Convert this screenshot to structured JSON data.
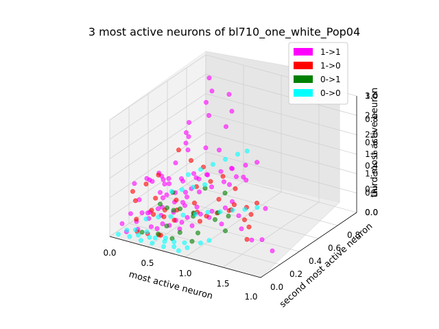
{
  "chart_data": {
    "type": "scatter",
    "projection": "3d",
    "title": "3 most active neurons of bl710_one_white_Pop04",
    "xlabel": "most active neuron",
    "ylabel": "second most active neuron",
    "zlabel": "third most active neuron",
    "xlim": [
      0,
      2
    ],
    "ylim": [
      0,
      1
    ],
    "zlim": [
      0,
      3
    ],
    "x_ticks": [
      "0.0",
      "0.5",
      "1.0",
      "1.5"
    ],
    "y_ticks": [
      "0.0",
      "0.2",
      "0.4",
      "0.6",
      "0.8"
    ],
    "y_ticks_overlay": [
      "0.0",
      "0.2",
      "0.4",
      "0.6",
      "0.8",
      "1.0"
    ],
    "x_ticks_overlay": [
      "0.0",
      "0.2",
      "0.4",
      "0.6",
      "0.8",
      "1.0"
    ],
    "z_ticks": [
      "0.0",
      "0.5",
      "1.0",
      "1.5",
      "2.0",
      "2.5",
      "3.0"
    ],
    "z_ticks_overlay": [
      "0.0",
      "0.2",
      "0.4",
      "0.6",
      "0.8",
      "1.0"
    ],
    "grid": true,
    "legend_placement": "top-right",
    "marker_alpha": 0.6,
    "series": [
      {
        "name": "1->1",
        "color": "#ff00ff",
        "points": [
          [
            0.1,
            0.05,
            0.3
          ],
          [
            0.15,
            0.1,
            0.5
          ],
          [
            0.2,
            0.15,
            0.8
          ],
          [
            0.25,
            0.2,
            0.4
          ],
          [
            0.3,
            0.1,
            0.6
          ],
          [
            0.35,
            0.25,
            0.9
          ],
          [
            0.4,
            0.3,
            1.2
          ],
          [
            0.45,
            0.15,
            0.7
          ],
          [
            0.5,
            0.2,
            1.0
          ],
          [
            0.55,
            0.35,
            0.5
          ],
          [
            0.6,
            0.1,
            1.5
          ],
          [
            0.65,
            0.25,
            0.8
          ],
          [
            0.7,
            0.3,
            1.1
          ],
          [
            0.2,
            0.4,
            0.9
          ],
          [
            0.3,
            0.45,
            1.3
          ],
          [
            0.4,
            0.5,
            1.6
          ],
          [
            0.5,
            0.4,
            2.0
          ],
          [
            0.6,
            0.35,
            2.3
          ],
          [
            0.7,
            0.45,
            1.9
          ],
          [
            0.8,
            0.3,
            1.4
          ],
          [
            0.9,
            0.2,
            0.9
          ],
          [
            1.0,
            0.25,
            0.6
          ],
          [
            1.1,
            0.3,
            0.4
          ],
          [
            0.25,
            0.6,
            1.8
          ],
          [
            0.35,
            0.55,
            2.2
          ],
          [
            0.45,
            0.65,
            2.6
          ],
          [
            0.55,
            0.6,
            2.4
          ],
          [
            0.65,
            0.7,
            2.0
          ],
          [
            0.75,
            0.55,
            1.7
          ],
          [
            0.85,
            0.6,
            1.2
          ],
          [
            0.3,
            0.8,
            2.9
          ],
          [
            0.4,
            0.75,
            2.7
          ],
          [
            0.5,
            0.85,
            2.5
          ],
          [
            0.6,
            0.8,
            2.2
          ],
          [
            0.15,
            0.3,
            0.2
          ],
          [
            0.25,
            0.35,
            0.3
          ],
          [
            0.35,
            0.4,
            0.4
          ],
          [
            0.45,
            0.45,
            0.5
          ],
          [
            0.55,
            0.5,
            0.6
          ],
          [
            0.65,
            0.55,
            0.7
          ],
          [
            0.75,
            0.6,
            0.8
          ],
          [
            0.85,
            0.65,
            0.9
          ],
          [
            0.95,
            0.5,
            1.0
          ],
          [
            1.05,
            0.45,
            0.7
          ],
          [
            1.2,
            0.4,
            0.5
          ],
          [
            1.3,
            0.35,
            0.3
          ],
          [
            1.5,
            0.3,
            0.2
          ],
          [
            1.7,
            0.25,
            0.4
          ],
          [
            1.9,
            0.2,
            0.3
          ],
          [
            1.3,
            0.6,
            0.4
          ],
          [
            0.1,
            0.2,
            0.1
          ],
          [
            0.2,
            0.25,
            0.15
          ],
          [
            0.3,
            0.3,
            0.2
          ],
          [
            0.4,
            0.35,
            0.25
          ],
          [
            0.5,
            0.1,
            0.3
          ],
          [
            0.6,
            0.15,
            0.35
          ],
          [
            0.7,
            0.2,
            0.4
          ],
          [
            0.8,
            0.1,
            0.45
          ],
          [
            0.9,
            0.15,
            0.5
          ],
          [
            0.15,
            0.5,
            0.6
          ],
          [
            0.25,
            0.55,
            0.7
          ],
          [
            0.35,
            0.6,
            0.8
          ],
          [
            0.45,
            0.2,
            0.9
          ],
          [
            0.55,
            0.25,
            1.0
          ],
          [
            0.65,
            0.5,
            1.1
          ],
          [
            0.75,
            0.2,
            1.2
          ],
          [
            0.2,
            0.1,
            1.3
          ],
          [
            0.3,
            0.15,
            1.4
          ],
          [
            0.4,
            0.1,
            1.5
          ],
          [
            0.5,
            0.05,
            1.6
          ],
          [
            0.12,
            0.08,
            0.05
          ],
          [
            0.22,
            0.12,
            0.1
          ],
          [
            0.32,
            0.18,
            0.12
          ],
          [
            0.42,
            0.22,
            0.18
          ],
          [
            0.52,
            0.28,
            0.22
          ],
          [
            0.62,
            0.32,
            0.28
          ],
          [
            0.72,
            0.38,
            0.32
          ],
          [
            0.82,
            0.42,
            0.38
          ],
          [
            0.92,
            0.48,
            0.42
          ],
          [
            0.18,
            0.62,
            0.48
          ],
          [
            0.28,
            0.68,
            0.52
          ],
          [
            0.38,
            0.72,
            0.58
          ],
          [
            0.48,
            0.78,
            0.62
          ],
          [
            0.58,
            0.82,
            0.68
          ],
          [
            0.68,
            0.88,
            0.72
          ],
          [
            0.78,
            0.92,
            0.78
          ],
          [
            0.88,
            0.7,
            0.82
          ],
          [
            0.98,
            0.65,
            0.88
          ],
          [
            0.08,
            0.45,
            0.92
          ],
          [
            0.18,
            0.4,
            0.98
          ]
        ]
      },
      {
        "name": "1->0",
        "color": "#ff0000",
        "points": [
          [
            0.1,
            0.3,
            0.9
          ],
          [
            0.2,
            0.35,
            1.1
          ],
          [
            0.3,
            0.2,
            0.5
          ],
          [
            0.4,
            0.25,
            0.3
          ],
          [
            0.5,
            0.3,
            0.7
          ],
          [
            0.6,
            0.2,
            0.4
          ],
          [
            0.7,
            0.15,
            0.8
          ],
          [
            0.8,
            0.25,
            0.6
          ],
          [
            0.9,
            0.3,
            0.5
          ],
          [
            1.0,
            0.35,
            0.9
          ],
          [
            1.1,
            0.4,
            0.6
          ],
          [
            1.2,
            0.3,
            0.8
          ],
          [
            1.3,
            0.45,
            0.5
          ],
          [
            1.4,
            0.35,
            0.4
          ],
          [
            1.5,
            0.25,
            0.3
          ],
          [
            0.15,
            0.6,
            1.3
          ],
          [
            0.25,
            0.65,
            1.0
          ],
          [
            0.35,
            0.7,
            0.8
          ],
          [
            0.45,
            0.55,
            0.6
          ],
          [
            0.55,
            0.45,
            0.4
          ],
          [
            0.65,
            0.4,
            0.3
          ],
          [
            0.75,
            0.35,
            0.2
          ],
          [
            0.85,
            0.45,
            0.3
          ],
          [
            0.95,
            0.55,
            0.4
          ],
          [
            1.05,
            0.6,
            0.3
          ],
          [
            1.15,
            0.5,
            0.2
          ],
          [
            0.3,
            0.05,
            0.2
          ],
          [
            0.4,
            0.08,
            0.15
          ],
          [
            0.5,
            0.12,
            0.1
          ],
          [
            0.6,
            0.06,
            0.25
          ],
          [
            0.2,
            0.12,
            0.35
          ],
          [
            0.35,
            0.18,
            0.45
          ],
          [
            0.45,
            0.22,
            0.55
          ],
          [
            0.25,
            0.28,
            0.65
          ],
          [
            0.15,
            0.15,
            0.75
          ],
          [
            0.05,
            0.2,
            0.85
          ],
          [
            0.7,
            0.5,
            0.95
          ],
          [
            0.8,
            0.55,
            1.05
          ],
          [
            0.9,
            0.6,
            0.7
          ],
          [
            1.25,
            0.55,
            0.6
          ]
        ]
      },
      {
        "name": "0->1",
        "color": "#008000",
        "points": [
          [
            0.3,
            0.1,
            0.1
          ],
          [
            0.5,
            0.2,
            0.2
          ],
          [
            0.7,
            0.1,
            0.15
          ],
          [
            0.9,
            0.15,
            0.1
          ],
          [
            0.4,
            0.35,
            0.3
          ],
          [
            0.6,
            0.4,
            0.25
          ],
          [
            0.8,
            0.5,
            0.2
          ],
          [
            1.0,
            0.45,
            0.3
          ],
          [
            0.2,
            0.5,
            0.4
          ],
          [
            0.5,
            0.6,
            0.5
          ],
          [
            0.7,
            0.65,
            0.4
          ],
          [
            0.35,
            0.25,
            0.6
          ],
          [
            0.55,
            0.3,
            0.5
          ],
          [
            0.75,
            0.28,
            0.45
          ],
          [
            0.95,
            0.35,
            0.35
          ],
          [
            1.15,
            0.3,
            0.25
          ],
          [
            0.45,
            0.15,
            0.05
          ],
          [
            0.65,
            0.22,
            0.08
          ],
          [
            0.85,
            0.25,
            0.12
          ],
          [
            0.25,
            0.4,
            0.2
          ]
        ]
      },
      {
        "name": "0->0",
        "color": "#00ffff",
        "points": [
          [
            0.05,
            0.05,
            0.0
          ],
          [
            0.1,
            0.1,
            0.05
          ],
          [
            0.15,
            0.15,
            0.0
          ],
          [
            0.2,
            0.05,
            0.02
          ],
          [
            0.25,
            0.1,
            0.0
          ],
          [
            0.3,
            0.15,
            0.03
          ],
          [
            0.35,
            0.05,
            0.0
          ],
          [
            0.4,
            0.1,
            0.02
          ],
          [
            0.45,
            0.12,
            0.0
          ],
          [
            0.5,
            0.05,
            0.01
          ],
          [
            0.55,
            0.15,
            0.0
          ],
          [
            0.6,
            0.1,
            0.02
          ],
          [
            0.65,
            0.05,
            0.0
          ],
          [
            0.7,
            0.12,
            0.03
          ],
          [
            0.75,
            0.08,
            0.0
          ],
          [
            0.8,
            0.15,
            0.01
          ],
          [
            0.85,
            0.05,
            0.0
          ],
          [
            0.9,
            0.1,
            0.02
          ],
          [
            0.95,
            0.2,
            0.0
          ],
          [
            1.0,
            0.25,
            0.01
          ],
          [
            0.1,
            0.3,
            0.0
          ],
          [
            0.2,
            0.35,
            0.02
          ],
          [
            0.3,
            0.4,
            0.0
          ],
          [
            0.4,
            0.45,
            0.01
          ],
          [
            0.5,
            0.5,
            0.0
          ],
          [
            0.6,
            0.55,
            0.02
          ],
          [
            0.7,
            0.6,
            0.0
          ],
          [
            0.8,
            0.65,
            0.01
          ],
          [
            0.9,
            0.7,
            0.0
          ],
          [
            1.0,
            0.75,
            0.02
          ],
          [
            0.15,
            0.7,
            0.5
          ],
          [
            0.25,
            0.75,
            0.6
          ],
          [
            0.35,
            0.8,
            0.7
          ],
          [
            0.45,
            0.85,
            0.8
          ],
          [
            0.55,
            0.9,
            0.9
          ],
          [
            0.65,
            0.92,
            1.0
          ],
          [
            0.12,
            0.55,
            0.3
          ],
          [
            0.22,
            0.58,
            0.35
          ],
          [
            0.32,
            0.62,
            0.4
          ],
          [
            0.42,
            0.66,
            0.45
          ]
        ]
      }
    ]
  }
}
